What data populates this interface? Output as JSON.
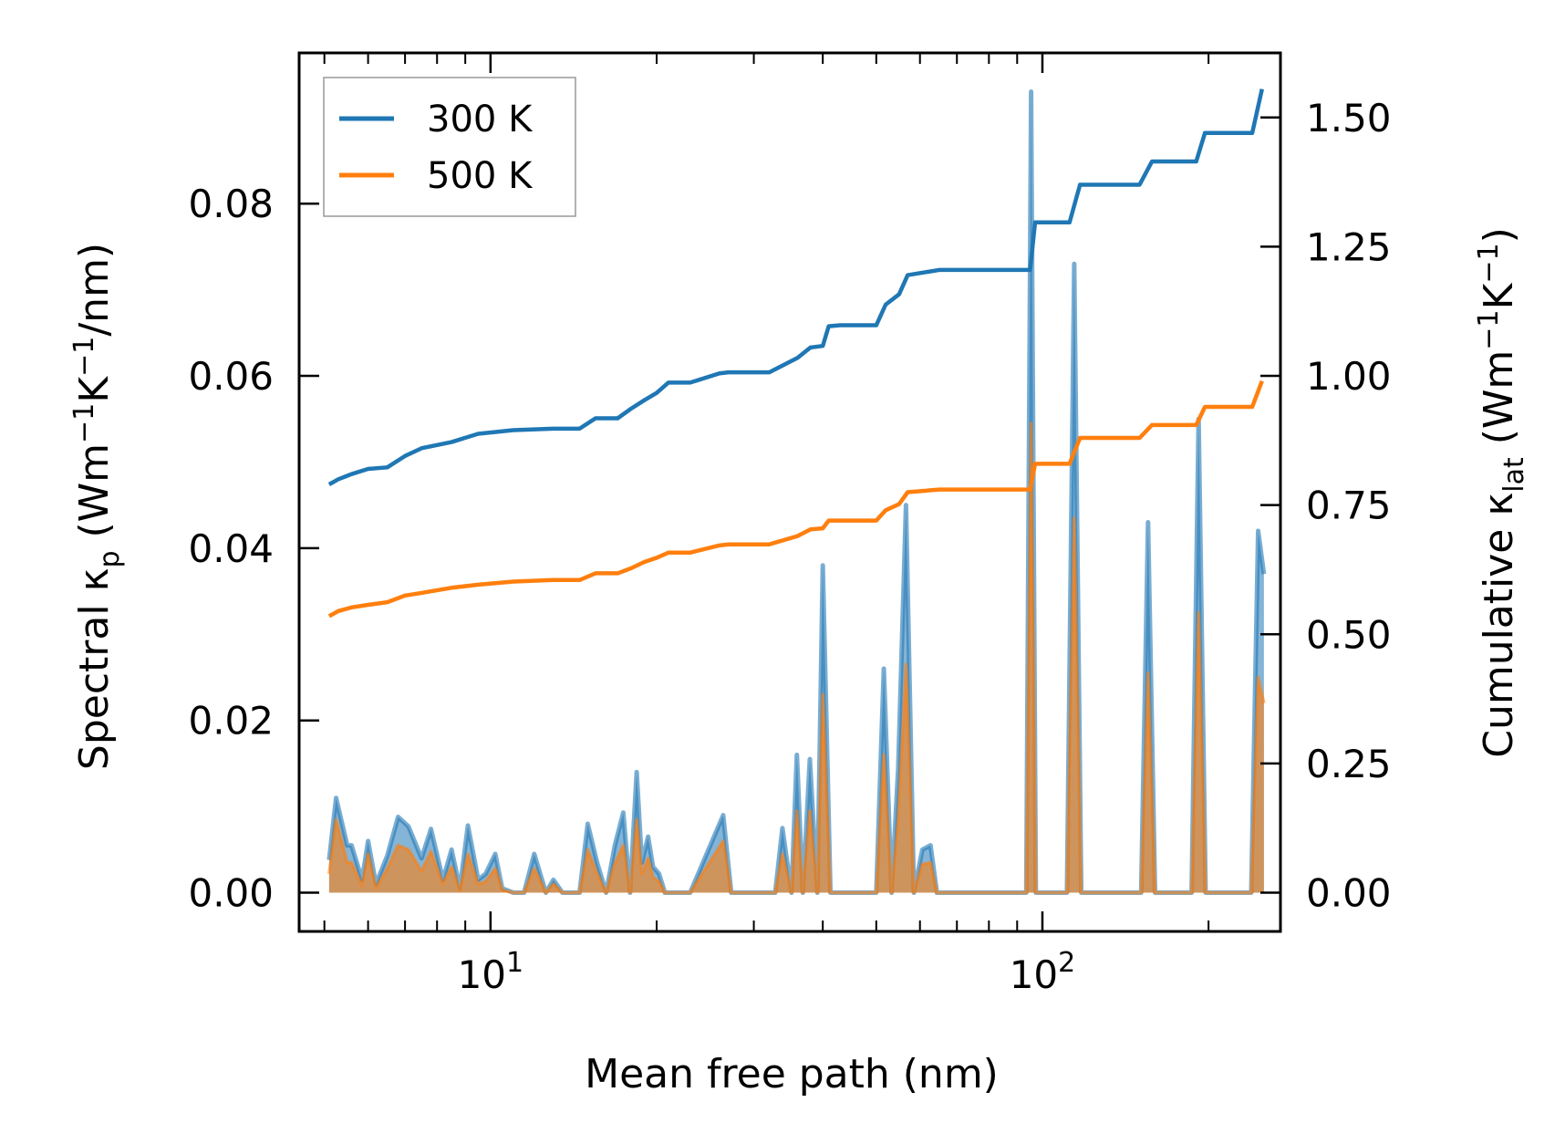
{
  "chart_data": {
    "type": "line",
    "xscale": "log",
    "xlabel": "Mean free path (nm)",
    "ylabel_left": {
      "main": "Spectral κ",
      "sub": "p",
      "units_pre": " (Wm",
      "exp1": "−1",
      "mid": "K",
      "exp2": "−1",
      "units_post": "/nm)"
    },
    "ylabel_right": {
      "main": "Cumulative κ",
      "sub": "lat",
      "units_pre": " (Wm",
      "exp1": "−1",
      "mid": "K",
      "exp2": "−1",
      "units_post": ")"
    },
    "xlim": [
      4.5,
      270
    ],
    "ylim_left": [
      -0.0045,
      0.0975
    ],
    "ylim_right": [
      -0.075,
      1.625
    ],
    "x_ticks": [
      {
        "value": 10,
        "base": "10",
        "exp": "1"
      },
      {
        "value": 100,
        "base": "10",
        "exp": "2"
      }
    ],
    "y_ticks_left": [
      "0.00",
      "0.02",
      "0.04",
      "0.06",
      "0.08"
    ],
    "y_ticks_right": [
      "0.00",
      "0.25",
      "0.50",
      "0.75",
      "1.00",
      "1.25",
      "1.50"
    ],
    "legend": {
      "position": "top-left",
      "entries": [
        "300 K",
        "500 K"
      ]
    },
    "colors": {
      "300 K": "#1f77b4",
      "500 K": "#ff7f0e",
      "fill_overlap": "#c59a6c"
    },
    "cumulative_series": [
      {
        "name": "300 K",
        "x": [
          5.1,
          5.3,
          5.6,
          6.0,
          6.5,
          7.0,
          7.5,
          8.5,
          9.5,
          11,
          13,
          14.5,
          15.5,
          17,
          18,
          19,
          20,
          21,
          23,
          26,
          27,
          32,
          36,
          38,
          40,
          41,
          43,
          50,
          52,
          55,
          57,
          65,
          95,
          97,
          112,
          117,
          150,
          158,
          190,
          197,
          240,
          250
        ],
        "y": [
          0.79,
          0.8,
          0.81,
          0.82,
          0.823,
          0.845,
          0.86,
          0.872,
          0.888,
          0.895,
          0.898,
          0.898,
          0.918,
          0.918,
          0.937,
          0.953,
          0.967,
          0.987,
          0.987,
          1.005,
          1.007,
          1.007,
          1.035,
          1.055,
          1.058,
          1.096,
          1.098,
          1.098,
          1.138,
          1.158,
          1.195,
          1.205,
          1.205,
          1.297,
          1.297,
          1.37,
          1.37,
          1.415,
          1.415,
          1.47,
          1.47,
          1.555
        ]
      },
      {
        "name": "500 K",
        "x": [
          5.1,
          5.3,
          5.6,
          6.0,
          6.5,
          7.0,
          7.5,
          8.5,
          9.5,
          11,
          13,
          14.5,
          15.5,
          17,
          18,
          19,
          20,
          21,
          23,
          26,
          27,
          32,
          36,
          38,
          40,
          41,
          43,
          50,
          52,
          55,
          57,
          65,
          95,
          97,
          112,
          117,
          150,
          158,
          190,
          197,
          240,
          250
        ],
        "y": [
          0.535,
          0.545,
          0.552,
          0.557,
          0.562,
          0.575,
          0.58,
          0.59,
          0.596,
          0.602,
          0.605,
          0.605,
          0.618,
          0.618,
          0.628,
          0.64,
          0.648,
          0.658,
          0.658,
          0.672,
          0.674,
          0.674,
          0.69,
          0.703,
          0.705,
          0.72,
          0.72,
          0.72,
          0.74,
          0.752,
          0.775,
          0.78,
          0.78,
          0.83,
          0.83,
          0.88,
          0.88,
          0.905,
          0.905,
          0.94,
          0.94,
          0.99
        ]
      }
    ],
    "spectral_series": [
      {
        "name": "300 K",
        "x": [
          5.1,
          5.25,
          5.5,
          5.6,
          5.85,
          6.0,
          6.2,
          6.5,
          6.8,
          7.1,
          7.5,
          7.8,
          8.2,
          8.5,
          8.8,
          9.1,
          9.5,
          9.8,
          10.2,
          10.5,
          11.0,
          11.5,
          12.0,
          12.6,
          13.0,
          13.5,
          14.0,
          14.5,
          15.0,
          15.6,
          16.2,
          16.8,
          17.4,
          17.9,
          18.4,
          18.8,
          19.3,
          19.7,
          20.2,
          20.7,
          21.4,
          22.0,
          23.0,
          26.4,
          27.3,
          28.0,
          28.9,
          32.8,
          33.8,
          35.1,
          35.9,
          36.8,
          37.9,
          39.1,
          40.0,
          41.3,
          42.8,
          50.0,
          51.6,
          53.3,
          54.8,
          56.6,
          58.5,
          60.6,
          62.7,
          64.4,
          66.0,
          93.5,
          95.4,
          97.3,
          110.8,
          114.2,
          117.6,
          151.0,
          155.4,
          160.0,
          186.4,
          191.9,
          197.6,
          239.0,
          246.0,
          252.0
        ],
        "y": [
          0.0038,
          0.011,
          0.0055,
          0.0055,
          0.0015,
          0.006,
          0.001,
          0.0043,
          0.0088,
          0.0077,
          0.004,
          0.0074,
          0.0015,
          0.005,
          0.0005,
          0.0078,
          0.0015,
          0.0022,
          0.0045,
          0.0005,
          0.0,
          0.0,
          0.0045,
          0.0,
          0.0015,
          0.0,
          0.0,
          0.0,
          0.008,
          0.0035,
          0.0,
          0.0055,
          0.0093,
          0.0,
          0.014,
          0.0035,
          0.0065,
          0.003,
          0.0022,
          0.0,
          0.0,
          0.0,
          0.0,
          0.009,
          0.0,
          0.0,
          0.0,
          0.0,
          0.0075,
          0.0,
          0.016,
          0.0,
          0.0155,
          0.0,
          0.038,
          0.0,
          0.0,
          0.0,
          0.026,
          0.0,
          0.0145,
          0.045,
          0.0,
          0.005,
          0.0055,
          0.0,
          0.0,
          0.0,
          0.093,
          0.0,
          0.0,
          0.073,
          0.0,
          0.0,
          0.043,
          0.0,
          0.0,
          0.055,
          0.0,
          0.0,
          0.042,
          0.037
        ]
      },
      {
        "name": "500 K",
        "x": [
          5.1,
          5.25,
          5.5,
          5.6,
          5.85,
          6.0,
          6.2,
          6.5,
          6.8,
          7.1,
          7.5,
          7.8,
          8.2,
          8.5,
          8.8,
          9.1,
          9.5,
          9.8,
          10.2,
          10.5,
          11.0,
          11.5,
          12.0,
          12.6,
          13.0,
          13.5,
          14.0,
          14.5,
          15.0,
          15.6,
          16.2,
          16.8,
          17.4,
          17.9,
          18.4,
          18.8,
          19.3,
          19.7,
          20.2,
          20.7,
          21.4,
          22.0,
          23.0,
          26.4,
          27.3,
          28.0,
          28.9,
          32.8,
          33.8,
          35.1,
          35.9,
          36.8,
          37.9,
          39.1,
          40.0,
          41.3,
          42.8,
          50.0,
          51.6,
          53.3,
          54.8,
          56.6,
          58.5,
          60.6,
          62.7,
          64.4,
          66.0,
          93.5,
          95.4,
          97.3,
          110.8,
          114.2,
          117.6,
          151.0,
          155.4,
          160.0,
          186.4,
          191.9,
          197.6,
          239.0,
          246.0,
          252.0
        ],
        "y": [
          0.0022,
          0.0085,
          0.0035,
          0.0035,
          0.0008,
          0.0045,
          0.0005,
          0.0028,
          0.0055,
          0.005,
          0.0025,
          0.0048,
          0.001,
          0.003,
          0.0003,
          0.0045,
          0.001,
          0.0013,
          0.0028,
          0.0003,
          0.0,
          0.0,
          0.0028,
          0.0,
          0.001,
          0.0,
          0.0,
          0.0,
          0.005,
          0.0022,
          0.0,
          0.0034,
          0.0055,
          0.0,
          0.0085,
          0.0022,
          0.004,
          0.0018,
          0.0013,
          0.0,
          0.0,
          0.0,
          0.0,
          0.006,
          0.0,
          0.0,
          0.0,
          0.0,
          0.0045,
          0.0,
          0.0095,
          0.0,
          0.0095,
          0.0,
          0.023,
          0.0,
          0.0,
          0.0,
          0.016,
          0.0,
          0.0085,
          0.0265,
          0.0,
          0.0033,
          0.0035,
          0.0,
          0.0,
          0.0,
          0.0545,
          0.0,
          0.0,
          0.0435,
          0.0,
          0.0,
          0.0255,
          0.0,
          0.0,
          0.0325,
          0.0,
          0.0,
          0.025,
          0.022
        ]
      }
    ]
  }
}
